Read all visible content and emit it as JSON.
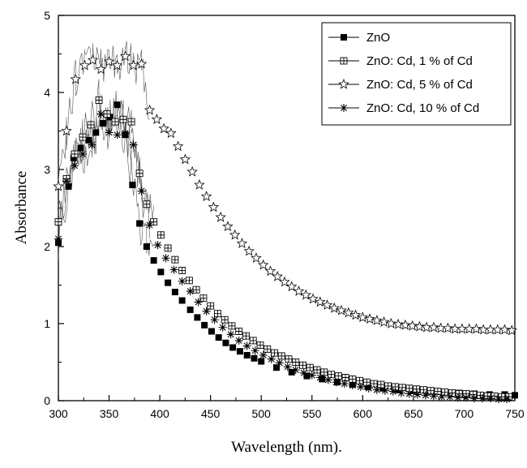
{
  "chart_data": {
    "type": "scatter",
    "title": "",
    "xlabel": "Wavelength (nm).",
    "ylabel": "Absorbance",
    "xlim": [
      300,
      750
    ],
    "ylim": [
      0,
      5
    ],
    "xticks": [
      300,
      350,
      400,
      450,
      500,
      550,
      600,
      650,
      700,
      750
    ],
    "yticks": [
      0,
      1,
      2,
      3,
      4,
      5
    ],
    "xtick_labels": [
      "300",
      "350",
      "400",
      "450",
      "500",
      "550",
      "600",
      "650",
      "700",
      "750"
    ],
    "ytick_labels": [
      "0",
      "1",
      "2",
      "3",
      "4",
      "5"
    ],
    "grid": false,
    "legend_position": "top-right",
    "series": [
      {
        "name": "ZnO",
        "marker": "filled-square",
        "x": [
          300,
          310,
          315,
          322,
          330,
          337,
          344,
          351,
          358,
          366,
          373,
          380,
          387,
          394,
          401,
          408,
          415,
          422,
          430,
          437,
          444,
          451,
          458,
          465,
          472,
          479,
          486,
          493,
          500,
          515,
          530,
          545,
          560,
          575,
          590,
          605,
          620,
          635,
          650,
          665,
          680,
          695,
          710,
          725,
          740,
          750
        ],
        "y": [
          2.05,
          2.78,
          3.15,
          3.28,
          3.38,
          3.48,
          3.6,
          3.68,
          3.84,
          3.45,
          2.8,
          2.3,
          2.0,
          1.82,
          1.67,
          1.53,
          1.41,
          1.3,
          1.18,
          1.08,
          0.98,
          0.9,
          0.82,
          0.75,
          0.69,
          0.64,
          0.59,
          0.55,
          0.51,
          0.43,
          0.37,
          0.32,
          0.28,
          0.24,
          0.21,
          0.18,
          0.16,
          0.14,
          0.13,
          0.12,
          0.11,
          0.1,
          0.09,
          0.08,
          0.08,
          0.07
        ]
      },
      {
        "name": "ZnO: Cd, 1 % of Cd",
        "marker": "grid-square",
        "x": [
          300,
          308,
          316,
          324,
          332,
          340,
          348,
          356,
          364,
          372,
          380,
          387,
          394,
          401,
          408,
          415,
          422,
          429,
          436,
          443,
          450,
          457,
          464,
          471,
          478,
          485,
          492,
          499,
          506,
          513,
          520,
          527,
          534,
          541,
          548,
          555,
          562,
          569,
          576,
          583,
          590,
          597,
          604,
          611,
          618,
          625,
          632,
          639,
          646,
          653,
          660,
          667,
          674,
          681,
          688,
          695,
          702,
          709,
          716,
          723,
          730,
          737,
          744
        ],
        "y": [
          2.32,
          2.88,
          3.2,
          3.42,
          3.58,
          3.9,
          3.72,
          3.62,
          3.65,
          3.62,
          2.95,
          2.55,
          2.32,
          2.15,
          1.98,
          1.83,
          1.69,
          1.56,
          1.44,
          1.33,
          1.23,
          1.13,
          1.05,
          0.97,
          0.9,
          0.84,
          0.78,
          0.72,
          0.67,
          0.62,
          0.58,
          0.54,
          0.5,
          0.46,
          0.43,
          0.4,
          0.37,
          0.34,
          0.32,
          0.3,
          0.28,
          0.26,
          0.24,
          0.22,
          0.21,
          0.19,
          0.18,
          0.17,
          0.16,
          0.15,
          0.14,
          0.13,
          0.12,
          0.11,
          0.1,
          0.09,
          0.09,
          0.08,
          0.07,
          0.06,
          0.06,
          0.05,
          0.05
        ]
      },
      {
        "name": "ZnO: Cd, 5 % of Cd",
        "marker": "open-star",
        "x": [
          300,
          308,
          317,
          326,
          334,
          342,
          350,
          358,
          366,
          374,
          382,
          390,
          397,
          404,
          411,
          418,
          425,
          432,
          439,
          446,
          453,
          460,
          467,
          474,
          481,
          488,
          495,
          502,
          509,
          516,
          523,
          530,
          537,
          544,
          551,
          558,
          565,
          572,
          579,
          586,
          593,
          600,
          607,
          614,
          621,
          628,
          635,
          642,
          649,
          656,
          663,
          670,
          677,
          684,
          691,
          698,
          705,
          712,
          719,
          726,
          733,
          740,
          747
        ],
        "y": [
          2.78,
          3.5,
          4.17,
          4.35,
          4.42,
          4.3,
          4.4,
          4.35,
          4.47,
          4.35,
          4.37,
          3.77,
          3.65,
          3.53,
          3.47,
          3.3,
          3.13,
          2.97,
          2.8,
          2.65,
          2.51,
          2.38,
          2.26,
          2.15,
          2.04,
          1.94,
          1.85,
          1.76,
          1.68,
          1.61,
          1.54,
          1.48,
          1.42,
          1.37,
          1.32,
          1.28,
          1.24,
          1.2,
          1.17,
          1.14,
          1.11,
          1.08,
          1.06,
          1.04,
          1.02,
          1.0,
          0.99,
          0.98,
          0.97,
          0.96,
          0.95,
          0.95,
          0.94,
          0.94,
          0.93,
          0.93,
          0.93,
          0.93,
          0.92,
          0.92,
          0.92,
          0.92,
          0.91
        ]
      },
      {
        "name": "ZnO: Cd, 10 % of Cd",
        "marker": "asterisk",
        "x": [
          300,
          308,
          316,
          324,
          333,
          342,
          350,
          358,
          366,
          374,
          382,
          390,
          398,
          406,
          414,
          422,
          430,
          438,
          446,
          454,
          462,
          470,
          478,
          486,
          494,
          502,
          510,
          518,
          526,
          534,
          542,
          550,
          558,
          566,
          574,
          582,
          590,
          598,
          606,
          614,
          622,
          630,
          638,
          646,
          654,
          662,
          670,
          678,
          686,
          694,
          702,
          710,
          718,
          726,
          734,
          742
        ],
        "y": [
          2.1,
          2.85,
          3.05,
          3.2,
          3.32,
          3.72,
          3.48,
          3.45,
          3.47,
          3.32,
          2.72,
          2.28,
          2.02,
          1.85,
          1.7,
          1.55,
          1.42,
          1.28,
          1.16,
          1.05,
          0.95,
          0.86,
          0.78,
          0.71,
          0.65,
          0.59,
          0.54,
          0.49,
          0.44,
          0.4,
          0.36,
          0.33,
          0.3,
          0.27,
          0.24,
          0.22,
          0.2,
          0.18,
          0.16,
          0.14,
          0.13,
          0.12,
          0.1,
          0.09,
          0.08,
          0.07,
          0.06,
          0.05,
          0.05,
          0.04,
          0.04,
          0.03,
          0.03,
          0.03,
          0.02,
          0.02
        ]
      }
    ]
  },
  "colors": {
    "axis": "#000000",
    "marker": "#000000",
    "marker_open": "#ffffff",
    "noise_line": "#666666"
  }
}
